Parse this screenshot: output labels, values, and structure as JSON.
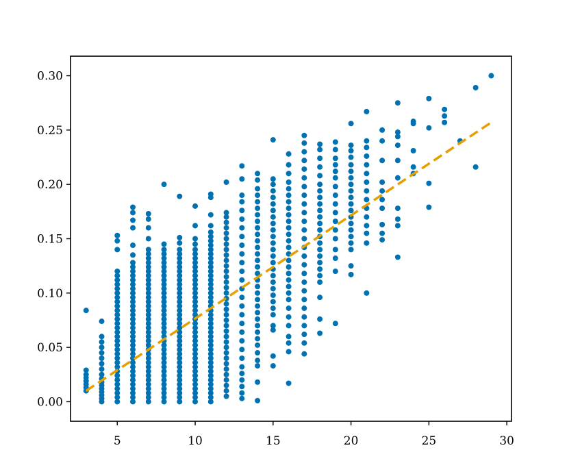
{
  "chart_data": {
    "type": "scatter",
    "title": "",
    "xlabel": "",
    "ylabel": "",
    "xlim": [
      2,
      30.3
    ],
    "ylim": [
      -0.018,
      0.318
    ],
    "grid": false,
    "x_ticks": [
      5,
      10,
      15,
      20,
      25,
      30
    ],
    "x_tick_labels": [
      "5",
      "10",
      "15",
      "20",
      "25",
      "30"
    ],
    "y_ticks": [
      0.0,
      0.05,
      0.1,
      0.15,
      0.2,
      0.25,
      0.3
    ],
    "y_tick_labels": [
      "0.00",
      "0.05",
      "0.10",
      "0.15",
      "0.20",
      "0.25",
      "0.30"
    ],
    "point_color": "#0072b2",
    "fit_color": "#e69f00",
    "fit_line": {
      "style": "dashed",
      "x": [
        3,
        29
      ],
      "y": [
        0.01,
        0.257
      ]
    },
    "series": [
      {
        "points_by_x": [
          {
            "x": 3,
            "y": [
              0.01,
              0.013,
              0.016,
              0.019,
              0.022,
              0.025,
              0.029,
              0.084
            ]
          },
          {
            "x": 4,
            "y": [
              0.0,
              0.003,
              0.006,
              0.009,
              0.012,
              0.015,
              0.018,
              0.021,
              0.025,
              0.03,
              0.035,
              0.04,
              0.045,
              0.05,
              0.055,
              0.06,
              0.074
            ]
          },
          {
            "x": 5,
            "y": [
              0.0,
              0.004,
              0.008,
              0.012,
              0.016,
              0.02,
              0.024,
              0.028,
              0.032,
              0.036,
              0.04,
              0.044,
              0.048,
              0.052,
              0.056,
              0.06,
              0.064,
              0.068,
              0.072,
              0.076,
              0.08,
              0.084,
              0.088,
              0.092,
              0.096,
              0.1,
              0.104,
              0.108,
              0.112,
              0.116,
              0.12,
              0.14,
              0.148,
              0.153
            ]
          },
          {
            "x": 6,
            "y": [
              0.0,
              0.004,
              0.008,
              0.012,
              0.016,
              0.02,
              0.024,
              0.028,
              0.032,
              0.036,
              0.04,
              0.044,
              0.048,
              0.052,
              0.056,
              0.06,
              0.064,
              0.068,
              0.072,
              0.076,
              0.08,
              0.084,
              0.088,
              0.092,
              0.096,
              0.1,
              0.104,
              0.108,
              0.112,
              0.116,
              0.12,
              0.124,
              0.128,
              0.135,
              0.144,
              0.16,
              0.167,
              0.174,
              0.179
            ]
          },
          {
            "x": 7,
            "y": [
              0.0,
              0.004,
              0.008,
              0.012,
              0.016,
              0.02,
              0.024,
              0.028,
              0.032,
              0.036,
              0.04,
              0.044,
              0.048,
              0.052,
              0.056,
              0.06,
              0.064,
              0.068,
              0.072,
              0.076,
              0.08,
              0.084,
              0.088,
              0.092,
              0.096,
              0.1,
              0.104,
              0.108,
              0.112,
              0.116,
              0.12,
              0.124,
              0.128,
              0.132,
              0.136,
              0.14,
              0.15,
              0.16,
              0.168,
              0.173
            ]
          },
          {
            "x": 8,
            "y": [
              0.0,
              0.004,
              0.008,
              0.012,
              0.016,
              0.02,
              0.024,
              0.028,
              0.032,
              0.036,
              0.04,
              0.044,
              0.048,
              0.052,
              0.056,
              0.06,
              0.064,
              0.068,
              0.072,
              0.076,
              0.08,
              0.084,
              0.088,
              0.092,
              0.096,
              0.1,
              0.104,
              0.108,
              0.112,
              0.116,
              0.12,
              0.124,
              0.128,
              0.132,
              0.136,
              0.14,
              0.145,
              0.2
            ]
          },
          {
            "x": 9,
            "y": [
              0.0,
              0.004,
              0.008,
              0.012,
              0.016,
              0.02,
              0.024,
              0.028,
              0.032,
              0.036,
              0.04,
              0.044,
              0.048,
              0.052,
              0.056,
              0.06,
              0.064,
              0.068,
              0.072,
              0.076,
              0.08,
              0.084,
              0.088,
              0.092,
              0.096,
              0.1,
              0.104,
              0.108,
              0.112,
              0.116,
              0.12,
              0.124,
              0.128,
              0.132,
              0.136,
              0.14,
              0.146,
              0.151,
              0.189
            ]
          },
          {
            "x": 10,
            "y": [
              0.0,
              0.004,
              0.008,
              0.012,
              0.016,
              0.02,
              0.024,
              0.028,
              0.032,
              0.036,
              0.04,
              0.044,
              0.048,
              0.052,
              0.056,
              0.06,
              0.064,
              0.068,
              0.072,
              0.076,
              0.08,
              0.084,
              0.088,
              0.092,
              0.096,
              0.1,
              0.104,
              0.108,
              0.112,
              0.116,
              0.12,
              0.124,
              0.128,
              0.132,
              0.136,
              0.14,
              0.145,
              0.15,
              0.162,
              0.18
            ]
          },
          {
            "x": 11,
            "y": [
              0.0,
              0.004,
              0.008,
              0.012,
              0.016,
              0.02,
              0.024,
              0.028,
              0.032,
              0.036,
              0.04,
              0.044,
              0.048,
              0.052,
              0.056,
              0.06,
              0.064,
              0.068,
              0.072,
              0.076,
              0.08,
              0.084,
              0.088,
              0.092,
              0.096,
              0.1,
              0.104,
              0.108,
              0.112,
              0.116,
              0.12,
              0.124,
              0.128,
              0.132,
              0.136,
              0.14,
              0.144,
              0.148,
              0.152,
              0.156,
              0.162,
              0.172,
              0.188,
              0.191
            ]
          },
          {
            "x": 12,
            "y": [
              0.005,
              0.01,
              0.015,
              0.02,
              0.025,
              0.03,
              0.035,
              0.04,
              0.045,
              0.05,
              0.055,
              0.06,
              0.065,
              0.07,
              0.075,
              0.08,
              0.085,
              0.09,
              0.095,
              0.1,
              0.105,
              0.11,
              0.115,
              0.12,
              0.125,
              0.13,
              0.135,
              0.14,
              0.145,
              0.15,
              0.155,
              0.16,
              0.165,
              0.17,
              0.174,
              0.202
            ]
          },
          {
            "x": 13,
            "y": [
              0.003,
              0.008,
              0.014,
              0.02,
              0.026,
              0.032,
              0.04,
              0.048,
              0.056,
              0.064,
              0.072,
              0.08,
              0.088,
              0.096,
              0.104,
              0.112,
              0.12,
              0.128,
              0.136,
              0.144,
              0.152,
              0.16,
              0.168,
              0.176,
              0.184,
              0.19,
              0.205,
              0.217
            ]
          },
          {
            "x": 14,
            "y": [
              0.001,
              0.018,
              0.033,
              0.038,
              0.045,
              0.052,
              0.058,
              0.064,
              0.07,
              0.076,
              0.082,
              0.088,
              0.094,
              0.1,
              0.106,
              0.112,
              0.118,
              0.124,
              0.13,
              0.136,
              0.142,
              0.148,
              0.154,
              0.16,
              0.166,
              0.172,
              0.178,
              0.184,
              0.19,
              0.196,
              0.204,
              0.21
            ]
          },
          {
            "x": 15,
            "y": [
              0.033,
              0.042,
              0.066,
              0.07,
              0.08,
              0.086,
              0.092,
              0.098,
              0.104,
              0.11,
              0.116,
              0.122,
              0.128,
              0.134,
              0.14,
              0.146,
              0.152,
              0.158,
              0.164,
              0.17,
              0.176,
              0.182,
              0.188,
              0.194,
              0.2,
              0.205,
              0.241
            ]
          },
          {
            "x": 16,
            "y": [
              0.017,
              0.046,
              0.054,
              0.06,
              0.07,
              0.078,
              0.086,
              0.094,
              0.1,
              0.106,
              0.112,
              0.118,
              0.124,
              0.13,
              0.136,
              0.142,
              0.148,
              0.154,
              0.16,
              0.166,
              0.172,
              0.178,
              0.184,
              0.19,
              0.196,
              0.202,
              0.21,
              0.218,
              0.228
            ]
          },
          {
            "x": 17,
            "y": [
              0.044,
              0.054,
              0.062,
              0.07,
              0.078,
              0.086,
              0.094,
              0.102,
              0.11,
              0.118,
              0.126,
              0.134,
              0.142,
              0.15,
              0.158,
              0.166,
              0.174,
              0.182,
              0.19,
              0.198,
              0.206,
              0.214,
              0.222,
              0.23,
              0.238,
              0.245
            ]
          },
          {
            "x": 18,
            "y": [
              0.063,
              0.076,
              0.096,
              0.11,
              0.116,
              0.122,
              0.128,
              0.134,
              0.14,
              0.146,
              0.152,
              0.158,
              0.164,
              0.17,
              0.176,
              0.182,
              0.188,
              0.194,
              0.2,
              0.208,
              0.216,
              0.224,
              0.232,
              0.237
            ]
          },
          {
            "x": 19,
            "y": [
              0.072,
              0.12,
              0.132,
              0.14,
              0.15,
              0.158,
              0.166,
              0.174,
              0.182,
              0.19,
              0.198,
              0.206,
              0.212,
              0.218,
              0.224,
              0.232,
              0.239
            ]
          },
          {
            "x": 20,
            "y": [
              0.117,
              0.125,
              0.14,
              0.146,
              0.152,
              0.158,
              0.164,
              0.17,
              0.176,
              0.182,
              0.188,
              0.194,
              0.2,
              0.206,
              0.212,
              0.218,
              0.225,
              0.231,
              0.236,
              0.256
            ]
          },
          {
            "x": 21,
            "y": [
              0.1,
              0.146,
              0.155,
              0.162,
              0.17,
              0.178,
              0.186,
              0.194,
              0.202,
              0.21,
              0.218,
              0.226,
              0.234,
              0.24,
              0.267
            ]
          },
          {
            "x": 22,
            "y": [
              0.149,
              0.155,
              0.163,
              0.178,
              0.186,
              0.194,
              0.202,
              0.222,
              0.24,
              0.25
            ]
          },
          {
            "x": 23,
            "y": [
              0.133,
              0.162,
              0.168,
              0.178,
              0.206,
              0.222,
              0.236,
              0.244,
              0.248,
              0.275
            ]
          },
          {
            "x": 24,
            "y": [
              0.21,
              0.216,
              0.231,
              0.256,
              0.258
            ]
          },
          {
            "x": 25,
            "y": [
              0.179,
              0.201,
              0.252,
              0.279
            ]
          },
          {
            "x": 26,
            "y": [
              0.257,
              0.263,
              0.269
            ]
          },
          {
            "x": 27,
            "y": [
              0.24
            ]
          },
          {
            "x": 28,
            "y": [
              0.216,
              0.289
            ]
          },
          {
            "x": 29,
            "y": [
              0.3
            ]
          }
        ]
      }
    ]
  }
}
